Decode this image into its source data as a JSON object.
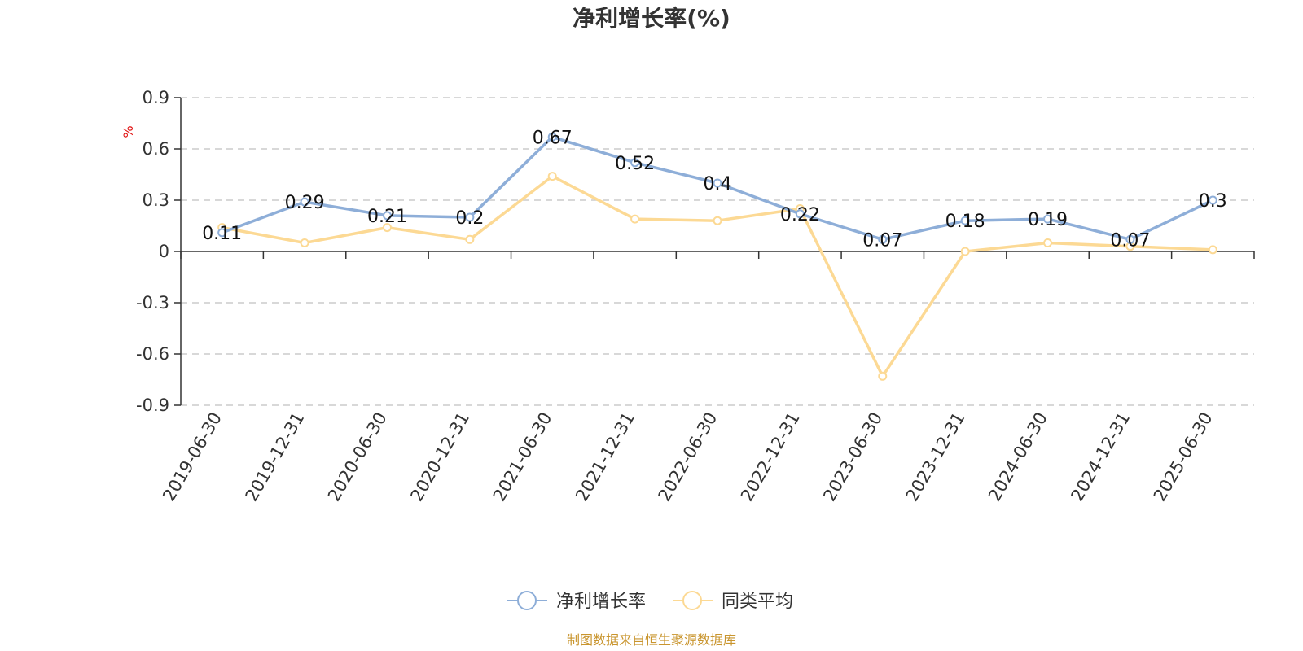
{
  "chart_data": {
    "type": "line",
    "title": "净利增长率(%)",
    "ylabel": "%",
    "xlabel": "",
    "ylim": [
      -0.9,
      0.9
    ],
    "yticks": [
      "0.9",
      "0.6",
      "0.3",
      "0",
      "-0.3",
      "-0.6",
      "-0.9"
    ],
    "ytick_values": [
      0.9,
      0.6,
      0.3,
      0,
      -0.3,
      -0.6,
      -0.9
    ],
    "categories": [
      "2019-06-30",
      "2019-12-31",
      "2020-06-30",
      "2020-12-31",
      "2021-06-30",
      "2021-12-31",
      "2022-06-30",
      "2022-12-31",
      "2023-06-30",
      "2023-12-31",
      "2024-06-30",
      "2024-12-31",
      "2025-06-30"
    ],
    "grid": true,
    "legend_position": "bottom-center",
    "series": [
      {
        "name": "净利增长率",
        "color": "#8eaed8",
        "values": [
          0.11,
          0.29,
          0.21,
          0.2,
          0.67,
          0.52,
          0.4,
          0.22,
          0.07,
          0.18,
          0.19,
          0.07,
          0.3
        ],
        "data_labels": [
          "0.11",
          "0.29",
          "0.21",
          "0.2",
          "0.67",
          "0.52",
          "0.4",
          "0.22",
          "0.07",
          "0.18",
          "0.19",
          "0.07",
          "0.3"
        ]
      },
      {
        "name": "同类平均",
        "color": "#fcd994",
        "values": [
          0.14,
          0.05,
          0.14,
          0.07,
          0.44,
          0.19,
          0.18,
          0.25,
          -0.73,
          0.0,
          0.05,
          0.03,
          0.01
        ]
      }
    ]
  },
  "footer": {
    "source": "制图数据来自恒生聚源数据库"
  }
}
